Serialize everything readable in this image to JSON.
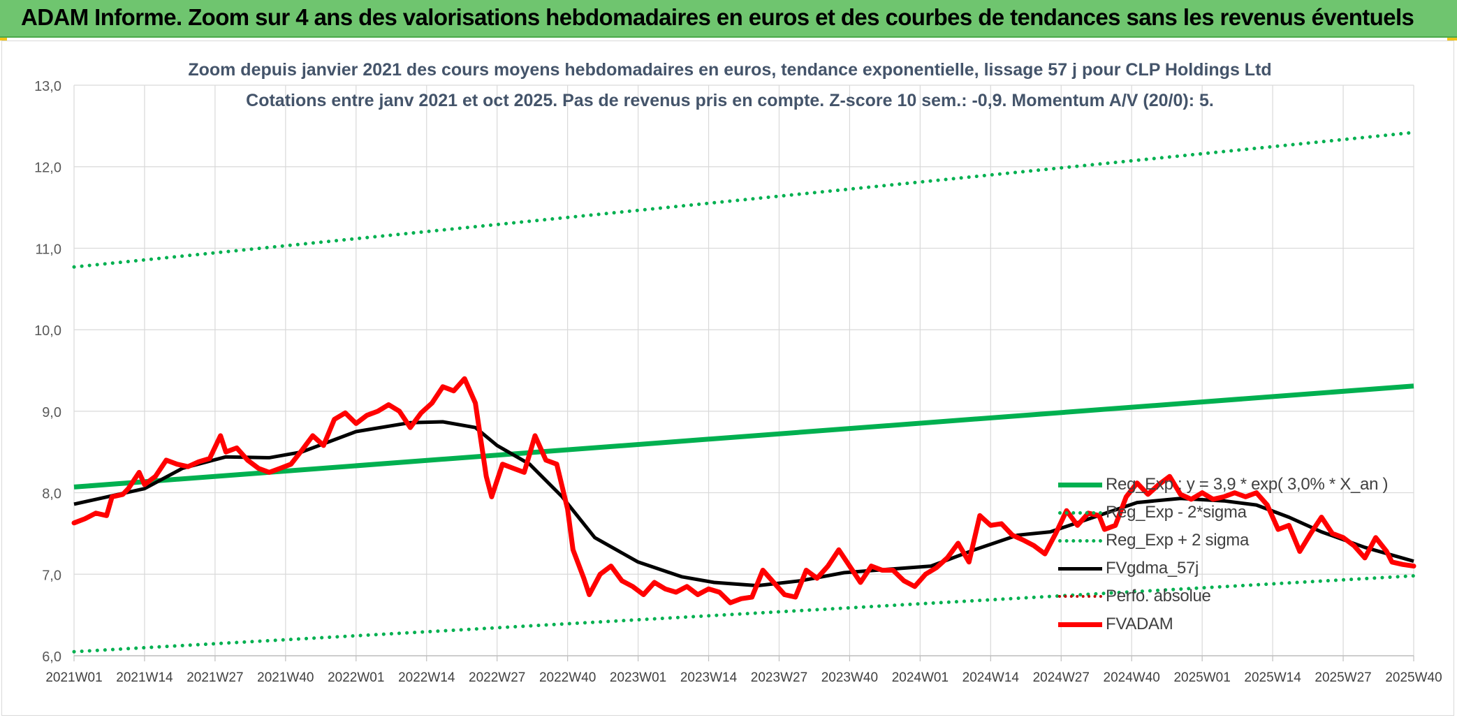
{
  "banner": {
    "title": "ADAM Informe. Zoom sur 4 ans des valorisations hebdomadaires en euros et des courbes de tendances sans les revenus éventuels"
  },
  "colors": {
    "banner_bg": "#6fc56f",
    "trend_green": "#00b050",
    "price_red": "#ff0000",
    "smooth_black": "#000000",
    "perf_dotted_red": "#c00000",
    "grid": "#d9d9d9"
  },
  "chart_data": {
    "type": "line",
    "title": "Zoom depuis janvier 2021 des cours moyens hebdomadaires en euros, tendance exponentielle, lissage 57 j pour CLP Holdings Ltd",
    "subtitle": "Cotations entre janv 2021 et oct 2025. Pas de revenus pris en compte. Z-score 10 sem.: -0,9. Momentum A/V (20/0): 5.",
    "xlabel": "",
    "ylabel": "",
    "ylim": [
      6.0,
      13.0
    ],
    "y_ticks": [
      "6,0",
      "7,0",
      "8,0",
      "9,0",
      "10,0",
      "11,0",
      "12,0",
      "13,0"
    ],
    "x_ticks": [
      "2021W01",
      "2021W14",
      "2021W27",
      "2021W40",
      "2022W01",
      "2022W14",
      "2022W27",
      "2022W40",
      "2023W01",
      "2023W14",
      "2023W27",
      "2023W40",
      "2024W01",
      "2024W14",
      "2024W27",
      "2024W40",
      "2025W01",
      "2025W14",
      "2025W27",
      "2025W40"
    ],
    "x_range_weeks": [
      0,
      247
    ],
    "grid": true,
    "legend_position": "bottom-right",
    "series": [
      {
        "name": "Reg_Exp : y = 3,9 * exp( 3,0% *  X_an )",
        "style": "solid-green",
        "points": [
          [
            0,
            8.07
          ],
          [
            247,
            9.31
          ]
        ]
      },
      {
        "name": "Reg_Exp - 2*sigma",
        "style": "dotted-green",
        "points": [
          [
            0,
            6.05
          ],
          [
            247,
            6.98
          ]
        ]
      },
      {
        "name": "Reg_Exp + 2 sigma",
        "style": "dotted-green",
        "points": [
          [
            0,
            10.77
          ],
          [
            247,
            12.42
          ]
        ]
      },
      {
        "name": "FVgdma_57j",
        "style": "black",
        "points": [
          [
            0,
            7.86
          ],
          [
            13,
            8.05
          ],
          [
            20,
            8.3
          ],
          [
            28,
            8.44
          ],
          [
            36,
            8.43
          ],
          [
            42,
            8.5
          ],
          [
            52,
            8.75
          ],
          [
            62,
            8.86
          ],
          [
            68,
            8.87
          ],
          [
            74,
            8.8
          ],
          [
            78,
            8.58
          ],
          [
            84,
            8.35
          ],
          [
            90,
            7.95
          ],
          [
            96,
            7.45
          ],
          [
            104,
            7.15
          ],
          [
            112,
            6.97
          ],
          [
            118,
            6.9
          ],
          [
            126,
            6.86
          ],
          [
            134,
            6.92
          ],
          [
            142,
            7.02
          ],
          [
            150,
            7.06
          ],
          [
            158,
            7.1
          ],
          [
            166,
            7.3
          ],
          [
            174,
            7.48
          ],
          [
            180,
            7.52
          ],
          [
            188,
            7.7
          ],
          [
            196,
            7.88
          ],
          [
            204,
            7.93
          ],
          [
            212,
            7.9
          ],
          [
            218,
            7.85
          ],
          [
            224,
            7.7
          ],
          [
            230,
            7.52
          ],
          [
            238,
            7.33
          ],
          [
            247,
            7.16
          ]
        ]
      },
      {
        "name": "Perfo. absolue",
        "style": "dotted-red",
        "points": []
      },
      {
        "name": "FVADAM",
        "style": "red",
        "points": [
          [
            0,
            7.63
          ],
          [
            2,
            7.68
          ],
          [
            4,
            7.75
          ],
          [
            6,
            7.72
          ],
          [
            7,
            7.95
          ],
          [
            9,
            7.98
          ],
          [
            10,
            8.05
          ],
          [
            12,
            8.25
          ],
          [
            13,
            8.1
          ],
          [
            15,
            8.2
          ],
          [
            17,
            8.4
          ],
          [
            19,
            8.35
          ],
          [
            21,
            8.32
          ],
          [
            23,
            8.38
          ],
          [
            25,
            8.42
          ],
          [
            27,
            8.7
          ],
          [
            28,
            8.5
          ],
          [
            30,
            8.55
          ],
          [
            32,
            8.4
          ],
          [
            34,
            8.3
          ],
          [
            36,
            8.25
          ],
          [
            38,
            8.3
          ],
          [
            40,
            8.35
          ],
          [
            42,
            8.52
          ],
          [
            44,
            8.7
          ],
          [
            46,
            8.58
          ],
          [
            48,
            8.9
          ],
          [
            50,
            8.98
          ],
          [
            52,
            8.85
          ],
          [
            54,
            8.95
          ],
          [
            56,
            9.0
          ],
          [
            58,
            9.08
          ],
          [
            60,
            9.0
          ],
          [
            62,
            8.8
          ],
          [
            64,
            8.98
          ],
          [
            66,
            9.1
          ],
          [
            68,
            9.3
          ],
          [
            70,
            9.25
          ],
          [
            72,
            9.4
          ],
          [
            74,
            9.1
          ],
          [
            76,
            8.2
          ],
          [
            77,
            7.95
          ],
          [
            79,
            8.35
          ],
          [
            81,
            8.3
          ],
          [
            83,
            8.25
          ],
          [
            85,
            8.7
          ],
          [
            87,
            8.4
          ],
          [
            89,
            8.35
          ],
          [
            91,
            7.8
          ],
          [
            92,
            7.3
          ],
          [
            94,
            6.95
          ],
          [
            95,
            6.75
          ],
          [
            97,
            7.0
          ],
          [
            99,
            7.1
          ],
          [
            101,
            6.92
          ],
          [
            103,
            6.85
          ],
          [
            105,
            6.75
          ],
          [
            107,
            6.9
          ],
          [
            109,
            6.82
          ],
          [
            111,
            6.78
          ],
          [
            113,
            6.85
          ],
          [
            115,
            6.75
          ],
          [
            117,
            6.82
          ],
          [
            119,
            6.78
          ],
          [
            121,
            6.65
          ],
          [
            123,
            6.7
          ],
          [
            125,
            6.72
          ],
          [
            127,
            7.05
          ],
          [
            129,
            6.9
          ],
          [
            131,
            6.75
          ],
          [
            133,
            6.72
          ],
          [
            135,
            7.05
          ],
          [
            137,
            6.95
          ],
          [
            139,
            7.1
          ],
          [
            141,
            7.3
          ],
          [
            143,
            7.1
          ],
          [
            145,
            6.9
          ],
          [
            147,
            7.1
          ],
          [
            149,
            7.05
          ],
          [
            151,
            7.05
          ],
          [
            153,
            6.92
          ],
          [
            155,
            6.85
          ],
          [
            157,
            7.0
          ],
          [
            159,
            7.08
          ],
          [
            161,
            7.2
          ],
          [
            163,
            7.38
          ],
          [
            165,
            7.15
          ],
          [
            167,
            7.72
          ],
          [
            169,
            7.6
          ],
          [
            171,
            7.62
          ],
          [
            173,
            7.48
          ],
          [
            175,
            7.42
          ],
          [
            177,
            7.35
          ],
          [
            179,
            7.25
          ],
          [
            181,
            7.5
          ],
          [
            183,
            7.78
          ],
          [
            185,
            7.6
          ],
          [
            187,
            7.75
          ],
          [
            189,
            7.72
          ],
          [
            190,
            7.55
          ],
          [
            192,
            7.6
          ],
          [
            194,
            7.95
          ],
          [
            196,
            8.12
          ],
          [
            198,
            7.98
          ],
          [
            200,
            8.1
          ],
          [
            202,
            8.2
          ],
          [
            204,
            7.98
          ],
          [
            206,
            7.92
          ],
          [
            208,
            8.0
          ],
          [
            210,
            7.92
          ],
          [
            212,
            7.95
          ],
          [
            214,
            8.0
          ],
          [
            216,
            7.95
          ],
          [
            218,
            8.0
          ],
          [
            220,
            7.85
          ],
          [
            222,
            7.55
          ],
          [
            224,
            7.6
          ],
          [
            226,
            7.28
          ],
          [
            228,
            7.5
          ],
          [
            230,
            7.7
          ],
          [
            232,
            7.5
          ],
          [
            234,
            7.45
          ],
          [
            236,
            7.35
          ],
          [
            238,
            7.2
          ],
          [
            240,
            7.45
          ],
          [
            242,
            7.28
          ],
          [
            243,
            7.15
          ],
          [
            245,
            7.12
          ],
          [
            247,
            7.1
          ]
        ]
      }
    ]
  }
}
